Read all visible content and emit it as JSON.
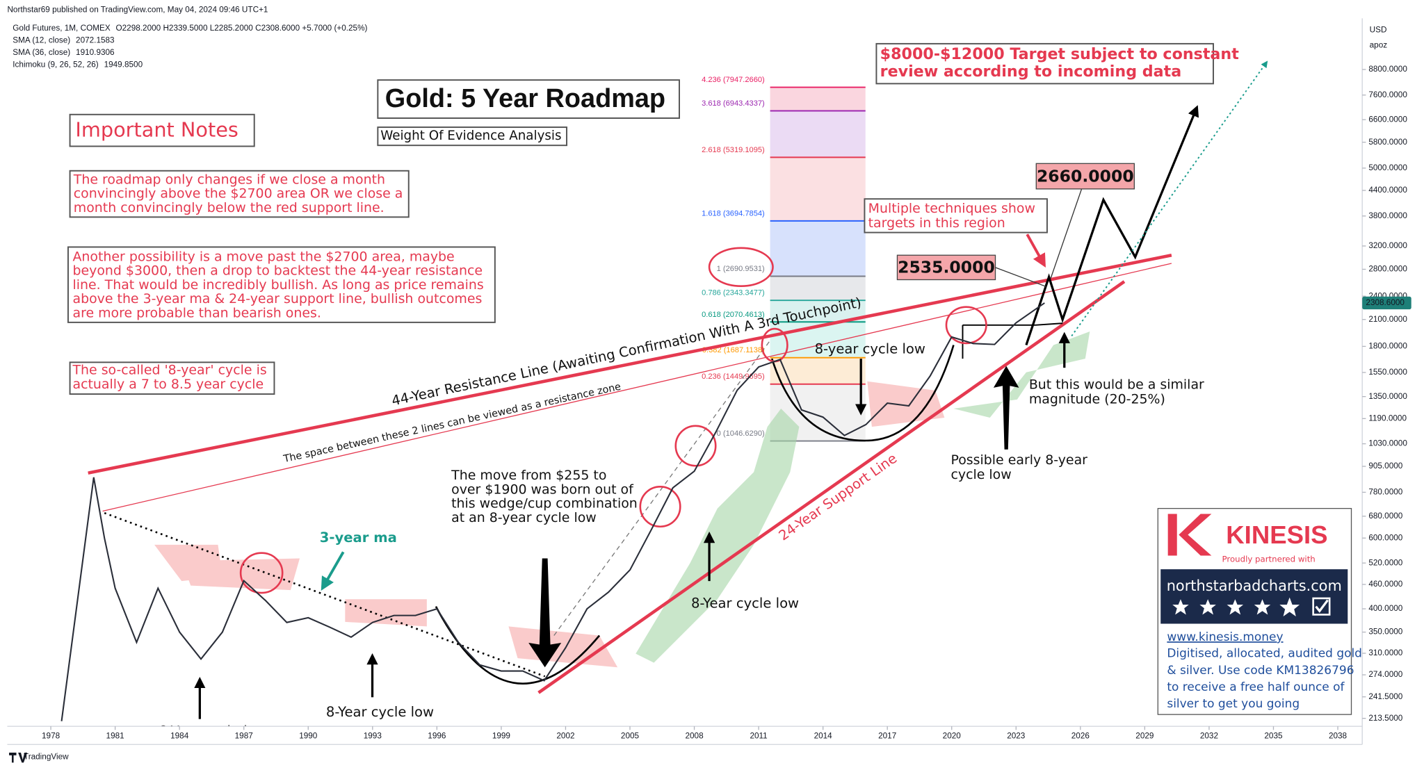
{
  "header": {
    "published_by": "Northstar69 published on TradingView.com, May 04, 2024 09:46 UTC+1",
    "legend": [
      {
        "text": "Gold Futures, 1M, COMEX",
        "values": "O2298.2000 H2339.5000 L2285.2000 C2308.6000 +5.7000 (+0.25%)",
        "color": "#089981"
      },
      {
        "text": "SMA (12, close)",
        "values": "2072.1583",
        "color": "#e53950"
      },
      {
        "text": "SMA (36, close)",
        "values": "1910.9306",
        "color": "#089981"
      },
      {
        "text": "Ichimoku (9, 26, 52, 26)",
        "values": "1949.8500",
        "color": "#e53950"
      }
    ],
    "currency": "USD",
    "scale_mode": "apoz"
  },
  "chart_data": {
    "type": "line",
    "log_scale": true,
    "grid": false,
    "x": [
      1978.5,
      1980,
      1980.5,
      1981,
      1982,
      1983,
      1984,
      1985,
      1986,
      1987,
      1988,
      1989,
      1990,
      1991,
      1992,
      1993,
      1994,
      1995,
      1996,
      1997,
      1998,
      1999,
      2000,
      2001,
      2002,
      2003,
      2004,
      2005,
      2006,
      2007,
      2008,
      2009,
      2010,
      2011,
      2012,
      2013,
      2014,
      2015,
      2016,
      2017,
      2018,
      2019,
      2020,
      2021,
      2022,
      2023,
      2024.33
    ],
    "series": [
      {
        "color": "#2a2e39",
        "values": [
          210,
          850,
          600,
          450,
          330,
          450,
          350,
          300,
          350,
          470,
          420,
          370,
          380,
          360,
          340,
          370,
          385,
          385,
          400,
          330,
          290,
          280,
          280,
          265,
          320,
          400,
          440,
          500,
          630,
          800,
          880,
          1100,
          1400,
          1600,
          1670,
          1250,
          1200,
          1080,
          1150,
          1300,
          1280,
          1520,
          1900,
          1830,
          1820,
          2060,
          2308.6
        ]
      }
    ],
    "xlim": [
      1975.97,
      2039.14
    ],
    "xticks": [
      1978,
      1981,
      1984,
      1987,
      1990,
      1993,
      1996,
      1999,
      2002,
      2005,
      2008,
      2011,
      2014,
      2017,
      2020,
      2023,
      2026,
      2029,
      2032,
      2035,
      2038
    ],
    "ylim": [
      204,
      11800
    ],
    "yticks": [
      {
        "value": 8800,
        "label": "8800.0000"
      },
      {
        "value": 7600,
        "label": "7600.0000"
      },
      {
        "value": 6600,
        "label": "6600.0000"
      },
      {
        "value": 5800,
        "label": "5800.0000"
      },
      {
        "value": 5000,
        "label": "5000.0000"
      },
      {
        "value": 4400,
        "label": "4400.0000"
      },
      {
        "value": 3800,
        "label": "3800.0000"
      },
      {
        "value": 3200,
        "label": "3200.0000"
      },
      {
        "value": 2800,
        "label": "2800.0000"
      },
      {
        "value": 2400,
        "label": "2400.0000"
      },
      {
        "value": 2100,
        "label": "2100.0000"
      },
      {
        "value": 1800,
        "label": "1800.0000"
      },
      {
        "value": 1550,
        "label": "1550.0000"
      },
      {
        "value": 1350,
        "label": "1350.0000"
      },
      {
        "value": 1190,
        "label": "1190.0000"
      },
      {
        "value": 1030,
        "label": "1030.0000"
      },
      {
        "value": 905,
        "label": "905.0000"
      },
      {
        "value": 780,
        "label": "780.0000"
      },
      {
        "value": 680,
        "label": "680.0000"
      },
      {
        "value": 600,
        "label": "600.0000"
      },
      {
        "value": 520,
        "label": "520.0000"
      },
      {
        "value": 460,
        "label": "460.0000"
      },
      {
        "value": 400,
        "label": "400.0000"
      },
      {
        "value": 350,
        "label": "350.0000"
      },
      {
        "value": 310,
        "label": "310.0000"
      },
      {
        "value": 274,
        "label": "274.0000"
      },
      {
        "value": 241.5,
        "label": "241.5000"
      },
      {
        "value": 213.5,
        "label": "213.5000"
      }
    ],
    "last_price": {
      "value": 2308.6,
      "label": "2308.6000",
      "color": "#1e7f78"
    },
    "price_callouts": [
      {
        "value": 2660,
        "label": "2660.0000"
      },
      {
        "value": 2535,
        "label": "2535.0000"
      }
    ],
    "fib_levels": [
      {
        "value": 7947.266,
        "label": "4.236 (7947.2660)",
        "color": "#e91e63",
        "band": "#f9cfd9"
      },
      {
        "value": 6943.4337,
        "label": "3.618 (6943.4337)",
        "color": "#9c27b0",
        "band": "#e8d5f2"
      },
      {
        "value": 5319.1095,
        "label": "2.618 (5319.1095)",
        "color": "#e53950",
        "band": "#fadadd"
      },
      {
        "value": 3694.7854,
        "label": "1.618 (3694.7854)",
        "color": "#2962ff",
        "band": "#d0dcfb"
      },
      {
        "value": 2690.9531,
        "label": "1 (2690.9531)",
        "color": "#787b86",
        "band": "#e3e4e7"
      },
      {
        "value": 2343.3477,
        "label": "0.786 (2343.3477)",
        "color": "#26a69a",
        "band": "#d3efec"
      },
      {
        "value": 2070.4613,
        "label": "0.618 (2070.4613)",
        "color": "#089981",
        "band": "#d5f3ef"
      },
      {
        "value": 1687.1138,
        "label": "0.382 (1687.1138)",
        "color": "#ff9800",
        "band": "#fde9cf"
      },
      {
        "value": 1449.9695,
        "label": "0.236 (1449.9695)",
        "color": "#e53950",
        "band": "#eeeeee"
      },
      {
        "value": 1046.629,
        "label": "0 (1046.6290)",
        "color": "#787b86",
        "band": "#eeeeee"
      }
    ],
    "annotations": [
      {
        "lines": [
          "Important Notes"
        ]
      },
      {
        "lines": [
          "The roadmap only changes if we close a month",
          "convincingly above the $2700 area OR we close a",
          "month convincingly below the red support line."
        ]
      },
      {
        "lines": [
          "Another possibility is a move past the $2700 area, maybe",
          "beyond $3000, then a drop to backtest the 44-year resistance",
          "line. That would be incredibly bullish. As long as price remains",
          "above the 3-year ma & 24-year support line, bullish outcomes",
          "are more probable than bearish ones."
        ]
      },
      {
        "lines": [
          "The so-called '8-year' cycle is",
          "actually a 7 to 8.5 year cycle"
        ]
      },
      {
        "lines": [
          "Gold: 5 Year Roadmap"
        ]
      },
      {
        "lines": [
          "Weight Of Evidence Analysis"
        ]
      },
      {
        "lines": [
          "$8000-$12000 Target subject to constant",
          "review according to incoming data"
        ]
      },
      {
        "lines": [
          "Multiple techniques show",
          "targets in this region"
        ]
      },
      {
        "lines": [
          "8-year cycle low"
        ]
      },
      {
        "lines": [
          "But this would be a similar",
          "magnitude (20-25%)"
        ]
      },
      {
        "lines": [
          "Possible early 8-year",
          "cycle low"
        ]
      },
      {
        "lines": [
          "8-Year cycle low"
        ]
      },
      {
        "lines": [
          "The move from  $255 to",
          "over $1900 was born out of",
          "this wedge/cup combination",
          "at an 8-year cycle low"
        ]
      },
      {
        "lines": [
          "3-year ma"
        ]
      },
      {
        "lines": [
          "8-Year cycle low"
        ]
      },
      {
        "lines": [
          "8-Year cycle low"
        ]
      },
      {
        "lines": [
          "44-Year Resistance Line (Awaiting Confirmation With A 3rd Touchpoint)"
        ]
      },
      {
        "lines": [
          "The space between these 2 lines can be viewed as a resistance zone"
        ]
      },
      {
        "lines": [
          "24-Year Support Line"
        ]
      }
    ]
  },
  "promo": {
    "brand": "KINESIS",
    "tagline": "Proudly partnered with",
    "site": "northstarbadcharts.com",
    "url": "www.kinesis.money",
    "lines": [
      "Digitised, allocated, audited gold",
      "& silver. Use code KM13826796",
      "to receive a free half ounce of",
      "silver to get you going"
    ]
  },
  "footer": {
    "brand": "TradingView"
  }
}
